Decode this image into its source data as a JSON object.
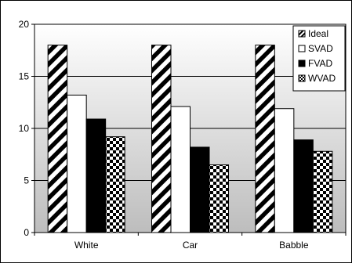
{
  "chart_data": {
    "type": "bar",
    "title": "",
    "xlabel": "",
    "ylabel": "",
    "categories": [
      "White",
      "Car",
      "Babble"
    ],
    "ylim": [
      0,
      20
    ],
    "yticks": [
      0,
      5,
      10,
      15,
      20
    ],
    "ytick_labels": [
      "0",
      "5",
      "10",
      "15",
      "20"
    ],
    "grid": "horizontal",
    "legend_position": "top-right",
    "background": "#c8c8c8",
    "series": [
      {
        "name": "Ideal",
        "values": [
          18,
          18,
          18
        ],
        "pattern": "diagonal-stripes"
      },
      {
        "name": "SVAD",
        "values": [
          13.2,
          12.1,
          11.9
        ],
        "pattern": "solid-white"
      },
      {
        "name": "FVAD",
        "values": [
          10.9,
          8.2,
          8.9
        ],
        "pattern": "solid-black"
      },
      {
        "name": "WVAD",
        "values": [
          9.2,
          6.5,
          7.8
        ],
        "pattern": "checkerboard"
      }
    ]
  }
}
